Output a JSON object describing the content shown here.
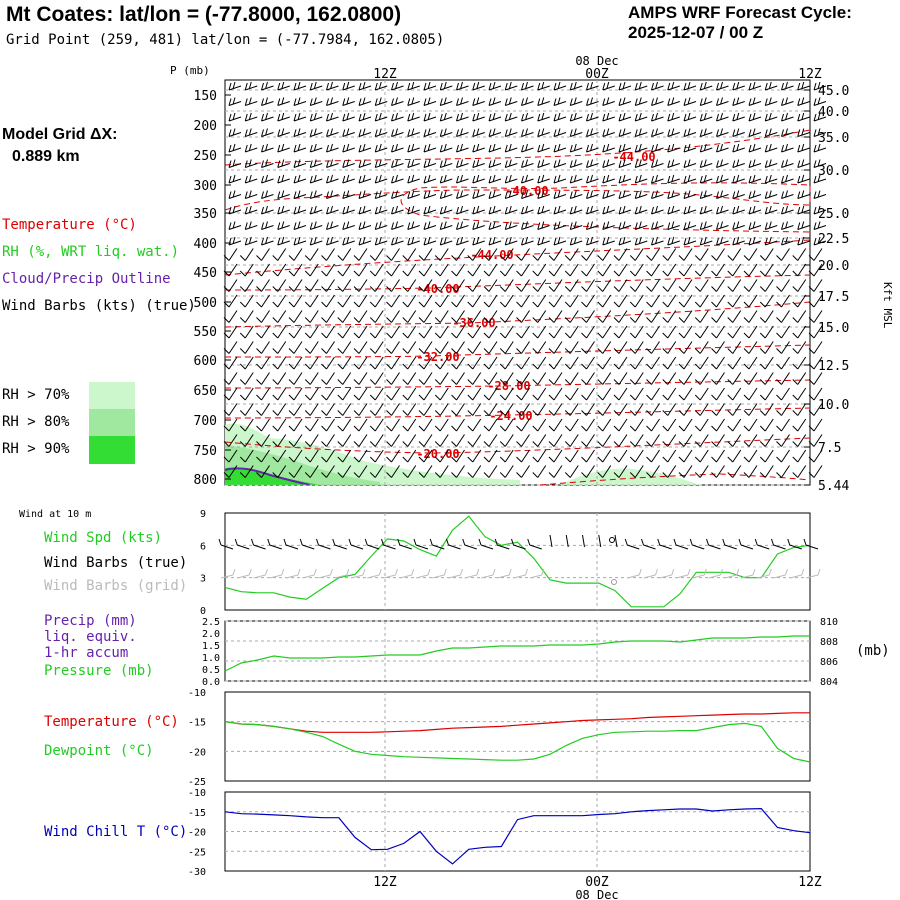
{
  "header": {
    "title": "Mt Coates:  lat/lon = (-77.8000, 162.0800)",
    "subtitle": "Grid Point (259, 481) lat/lon = (-77.7984, 162.0805)",
    "cycle_line1": "AMPS WRF Forecast Cycle:",
    "cycle_line2": "2025-12-07 / 00  Z"
  },
  "model_grid": {
    "label": "Model Grid ΔX:",
    "value": "0.889 km"
  },
  "legend": {
    "temperature": "Temperature (°C)",
    "rh": "RH (%, WRT liq. wat.)",
    "cloud": "Cloud/Precip Outline",
    "wind": "Wind Barbs (kts) (true)",
    "rh70": "RH > 70%",
    "rh80": "RH > 80%",
    "rh90": "RH > 90%"
  },
  "colors": {
    "rh70": "#ccf7cc",
    "rh80": "#a0e8a0",
    "rh90": "#33dd33",
    "temp": "#dd0000",
    "green": "#22cc22",
    "purple": "#6622aa",
    "blue": "#0000bb"
  },
  "time_axis": {
    "ticks": [
      "12Z",
      "00Z",
      "12Z"
    ],
    "date": "08 Dec"
  },
  "profile": {
    "p_label": "P (mb)",
    "height_label": "Kft MSL",
    "pressure_ticks": [
      "150",
      "200",
      "250",
      "300",
      "350",
      "400",
      "450",
      "500",
      "550",
      "600",
      "650",
      "700",
      "750",
      "800"
    ],
    "height_ticks": [
      "45.0",
      "40.0",
      "35.0",
      "30.0",
      "25.0",
      "22.5",
      "20.0",
      "17.5",
      "15.0",
      "12.5",
      "10.0",
      "7.5",
      "5.44"
    ],
    "contour_labels": [
      "-44.00",
      "-40.00",
      "-44.00",
      "-40.00",
      "-36.00",
      "-32.00",
      "-28.00",
      "-24.00",
      "-20.00"
    ]
  },
  "wind10m": {
    "title": "Wind at 10 m",
    "labels": [
      "Wind Spd (kts)",
      "Wind Barbs (true)",
      "Wind Barbs (grid)"
    ],
    "yticks": [
      "9",
      "6",
      "3",
      "0"
    ]
  },
  "precip": {
    "labels": [
      "Precip (mm)",
      "liq. equiv.",
      "1-hr accum",
      "Pressure (mb)"
    ],
    "yticks": [
      "2.5",
      "2.0",
      "1.5",
      "1.0",
      "0.5",
      "0.0"
    ],
    "y2ticks": [
      "810",
      "808",
      "806",
      "804"
    ],
    "unit": "(mb)"
  },
  "temp_panel": {
    "labels": [
      "Temperature (°C)",
      "Dewpoint (°C)"
    ],
    "yticks": [
      "-10",
      "-15",
      "-20",
      "-25"
    ]
  },
  "chill_panel": {
    "label": "Wind Chill T (°C)",
    "yticks": [
      "-10",
      "-15",
      "-20",
      "-25",
      "-30"
    ]
  },
  "chart_data": [
    {
      "type": "line",
      "title": "Wind at 10 m",
      "ylabel": "Wind Spd (kts)",
      "ylim": [
        0,
        9
      ],
      "x": [
        0,
        1,
        2,
        3,
        4,
        5,
        6,
        7,
        8,
        9,
        10,
        11,
        12,
        13,
        14,
        15,
        16,
        17,
        18,
        19,
        20,
        21,
        22,
        23,
        24,
        25,
        26,
        27,
        28,
        29,
        30,
        31,
        32,
        33,
        34,
        35,
        36
      ],
      "series": [
        {
          "name": "Wind Spd (kts)",
          "values": [
            2.1,
            1.7,
            1.6,
            1.6,
            1.2,
            1.0,
            2.0,
            3.0,
            3.3,
            5.0,
            6.6,
            6.4,
            5.6,
            5.0,
            7.4,
            8.7,
            6.8,
            6.0,
            6.3,
            4.8,
            2.8,
            2.5,
            2.5,
            2.5,
            1.8,
            0.3,
            0.3,
            0.3,
            1.5,
            3.5,
            3.5,
            3.5,
            3.0,
            3.0,
            5.2,
            5.8,
            6.0
          ]
        }
      ]
    },
    {
      "type": "line",
      "title": "Precip / Pressure",
      "ylabel": "Pressure (mb)",
      "ylim": [
        804,
        810
      ],
      "x": [
        0,
        1,
        2,
        3,
        4,
        5,
        6,
        7,
        8,
        9,
        10,
        11,
        12,
        13,
        14,
        15,
        16,
        17,
        18,
        19,
        20,
        21,
        22,
        23,
        24,
        25,
        26,
        27,
        28,
        29,
        30,
        31,
        32,
        33,
        34,
        35,
        36
      ],
      "series": [
        {
          "name": "Pressure (mb)",
          "values": [
            805.0,
            805.8,
            806.1,
            806.5,
            806.3,
            806.3,
            806.3,
            806.4,
            806.4,
            806.5,
            806.6,
            806.6,
            806.6,
            807.0,
            807.3,
            807.3,
            807.4,
            807.5,
            807.5,
            807.5,
            807.6,
            807.6,
            807.6,
            807.7,
            807.9,
            808.0,
            808.0,
            808.0,
            807.9,
            808.1,
            808.3,
            808.3,
            808.3,
            808.4,
            808.4,
            808.5,
            808.5
          ]
        }
      ]
    },
    {
      "type": "line",
      "title": "Temperature / Dewpoint",
      "ylim": [
        -25,
        -10
      ],
      "x": [
        0,
        1,
        2,
        3,
        4,
        5,
        6,
        7,
        8,
        9,
        10,
        11,
        12,
        13,
        14,
        15,
        16,
        17,
        18,
        19,
        20,
        21,
        22,
        23,
        24,
        25,
        26,
        27,
        28,
        29,
        30,
        31,
        32,
        33,
        34,
        35,
        36
      ],
      "series": [
        {
          "name": "Temperature (°C)",
          "values": [
            -15.0,
            -15.4,
            -15.5,
            -15.8,
            -16.2,
            -16.6,
            -16.8,
            -16.8,
            -16.8,
            -16.8,
            -16.7,
            -16.6,
            -16.5,
            -16.3,
            -16.1,
            -16.0,
            -15.9,
            -15.8,
            -15.6,
            -15.4,
            -15.2,
            -15.0,
            -14.8,
            -14.7,
            -14.6,
            -14.5,
            -14.3,
            -14.2,
            -14.1,
            -14.0,
            -13.9,
            -13.8,
            -13.7,
            -13.7,
            -13.6,
            -13.5,
            -13.5
          ],
          "color": "#dd0000"
        },
        {
          "name": "Dewpoint (°C)",
          "values": [
            -15.0,
            -15.4,
            -15.5,
            -15.8,
            -16.2,
            -16.8,
            -17.5,
            -18.8,
            -20.0,
            -20.5,
            -20.7,
            -20.9,
            -21.0,
            -21.1,
            -21.2,
            -21.3,
            -21.4,
            -21.5,
            -21.5,
            -21.3,
            -20.5,
            -19.0,
            -17.8,
            -17.2,
            -16.8,
            -16.7,
            -16.6,
            -16.6,
            -16.5,
            -16.5,
            -16.0,
            -15.5,
            -15.3,
            -15.8,
            -19.5,
            -21.2,
            -21.8
          ],
          "color": "#22cc22"
        }
      ]
    },
    {
      "type": "line",
      "title": "Wind Chill",
      "ylabel": "Wind Chill T (°C)",
      "ylim": [
        -30,
        -10
      ],
      "x": [
        0,
        1,
        2,
        3,
        4,
        5,
        6,
        7,
        8,
        9,
        10,
        11,
        12,
        13,
        14,
        15,
        16,
        17,
        18,
        19,
        20,
        21,
        22,
        23,
        24,
        25,
        26,
        27,
        28,
        29,
        30,
        31,
        32,
        33,
        34,
        35,
        36
      ],
      "series": [
        {
          "name": "Wind Chill T (°C)",
          "values": [
            -15.0,
            -15.5,
            -15.6,
            -15.8,
            -16.0,
            -16.3,
            -16.5,
            -16.5,
            -21.5,
            -24.6,
            -24.5,
            -23.0,
            -20.0,
            -25.0,
            -28.2,
            -24.5,
            -24.0,
            -23.8,
            -17.0,
            -16.0,
            -16.0,
            -16.0,
            -16.0,
            -15.7,
            -15.5,
            -15.0,
            -14.7,
            -14.5,
            -14.3,
            -14.3,
            -14.8,
            -14.5,
            -14.3,
            -14.2,
            -19.0,
            -19.8,
            -20.3
          ],
          "color": "#0000bb"
        }
      ]
    }
  ]
}
